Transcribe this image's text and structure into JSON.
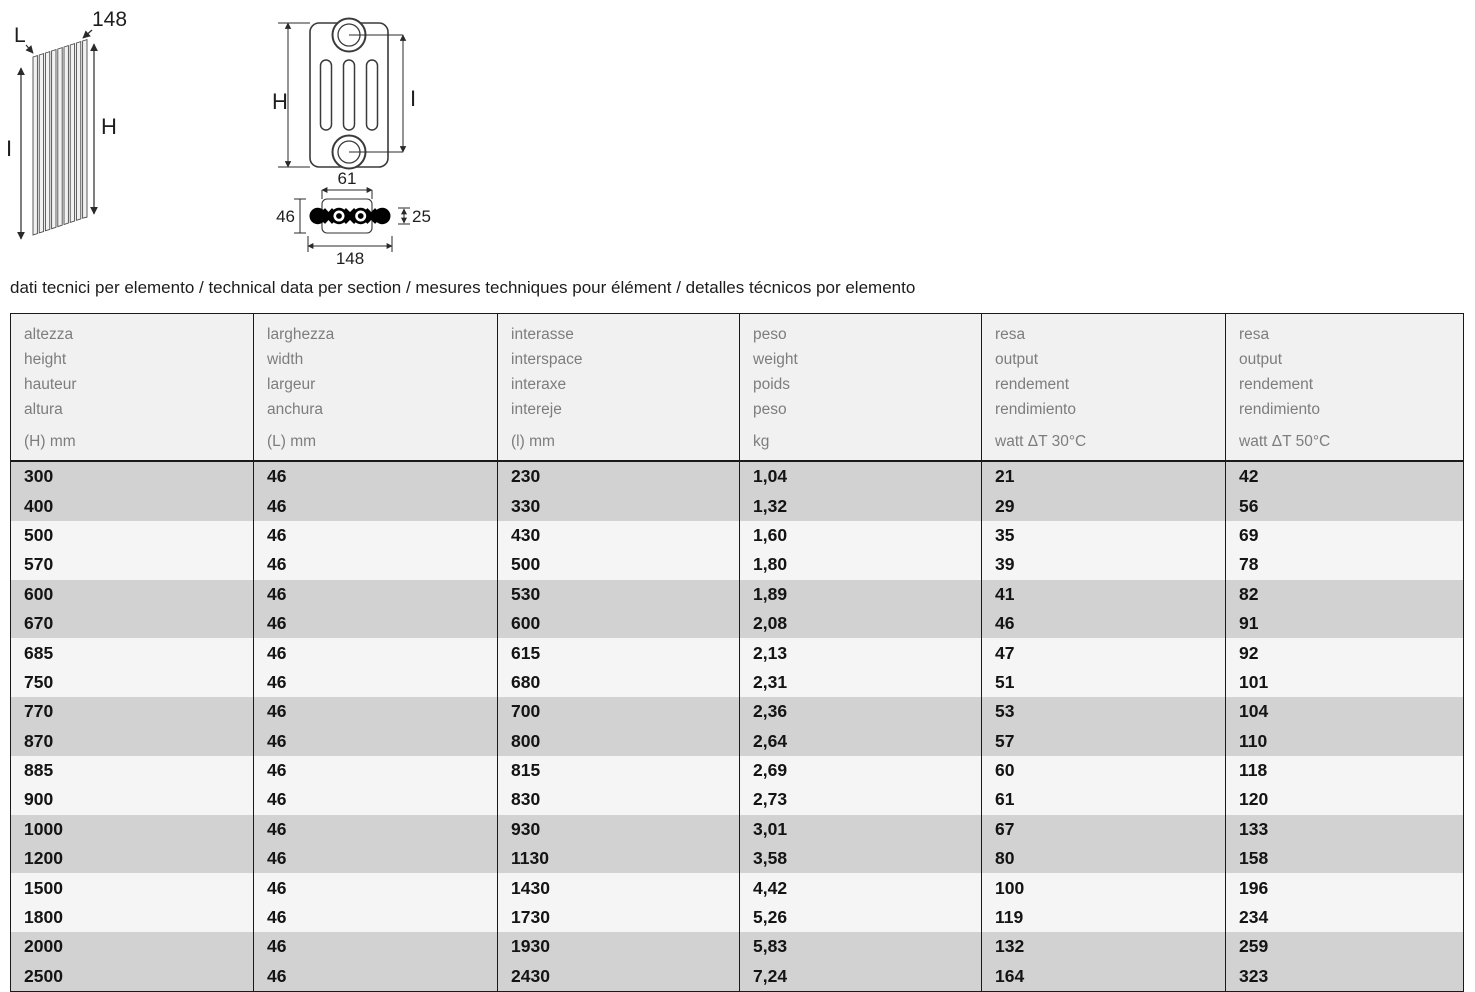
{
  "caption": "dati tecnici per elemento / technical data per section / mesures techniques pour élément / detalles técnicos por elemento",
  "diagrams": {
    "side_view": {
      "labels": {
        "depth": "L",
        "width_top": "148",
        "height": "H",
        "interspace": "I"
      }
    },
    "front_view": {
      "labels": {
        "height": "H",
        "interspace": "I"
      }
    },
    "cross_section": {
      "labels": {
        "hub_width": "61",
        "depth": "46",
        "fin_thickness": "25",
        "total_width": "148"
      }
    }
  },
  "table": {
    "columns": [
      {
        "names": [
          "altezza",
          "height",
          "hauteur",
          "altura"
        ],
        "unit": "(H) mm"
      },
      {
        "names": [
          "larghezza",
          "width",
          "largeur",
          "anchura"
        ],
        "unit": "(L) mm"
      },
      {
        "names": [
          "interasse",
          "interspace",
          "interaxe",
          "intereje"
        ],
        "unit": "(l) mm"
      },
      {
        "names": [
          "peso",
          "weight",
          "poids",
          "peso"
        ],
        "unit": "kg"
      },
      {
        "names": [
          "resa",
          "output",
          "rendement",
          "rendimiento"
        ],
        "unit": "watt ΔT 30°C"
      },
      {
        "names": [
          "resa",
          "output",
          "rendement",
          "rendimiento"
        ],
        "unit": "watt ΔT 50°C"
      }
    ],
    "rows": [
      [
        "300",
        "46",
        "230",
        "1,04",
        "21",
        "42"
      ],
      [
        "400",
        "46",
        "330",
        "1,32",
        "29",
        "56"
      ],
      [
        "500",
        "46",
        "430",
        "1,60",
        "35",
        "69"
      ],
      [
        "570",
        "46",
        "500",
        "1,80",
        "39",
        "78"
      ],
      [
        "600",
        "46",
        "530",
        "1,89",
        "41",
        "82"
      ],
      [
        "670",
        "46",
        "600",
        "2,08",
        "46",
        "91"
      ],
      [
        "685",
        "46",
        "615",
        "2,13",
        "47",
        "92"
      ],
      [
        "750",
        "46",
        "680",
        "2,31",
        "51",
        "101"
      ],
      [
        "770",
        "46",
        "700",
        "2,36",
        "53",
        "104"
      ],
      [
        "870",
        "46",
        "800",
        "2,64",
        "57",
        "110"
      ],
      [
        "885",
        "46",
        "815",
        "2,69",
        "60",
        "118"
      ],
      [
        "900",
        "46",
        "830",
        "2,73",
        "61",
        "120"
      ],
      [
        "1000",
        "46",
        "930",
        "3,01",
        "67",
        "133"
      ],
      [
        "1200",
        "46",
        "1130",
        "3,58",
        "80",
        "158"
      ],
      [
        "1500",
        "46",
        "1430",
        "4,42",
        "100",
        "196"
      ],
      [
        "1800",
        "46",
        "1730",
        "5,26",
        "119",
        "234"
      ],
      [
        "2000",
        "46",
        "1930",
        "5,83",
        "132",
        "259"
      ],
      [
        "2500",
        "46",
        "2430",
        "7,24",
        "164",
        "323"
      ]
    ]
  },
  "colors": {
    "row_dark": "#d2d2d2",
    "row_light": "#f5f5f5",
    "header_bg": "#f1f1f1",
    "header_text": "#7d7d7d",
    "body_text": "#141414",
    "border": "#1a1a1a",
    "line": "#2a2a2a"
  }
}
